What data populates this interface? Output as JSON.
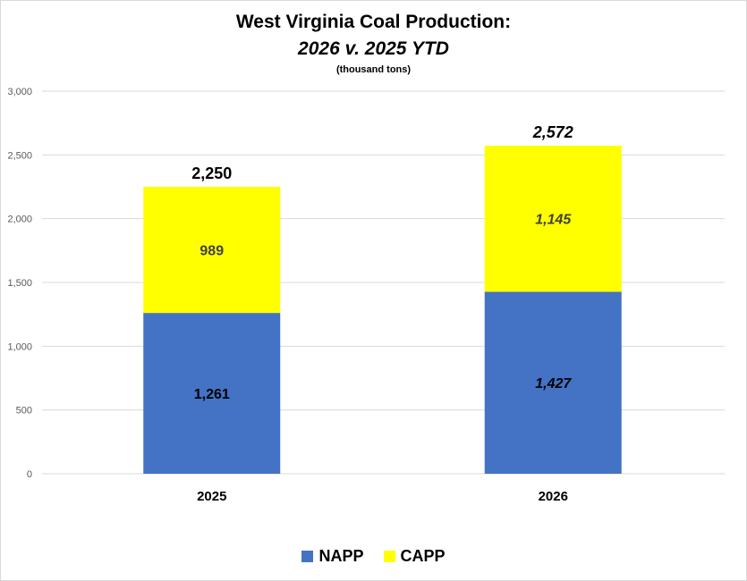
{
  "chart_data": {
    "type": "bar",
    "stacked": true,
    "title": "West Virginia Coal Production:",
    "subtitle": "2026 v. 2025 YTD",
    "units": "(thousand tons)",
    "xlabel": "",
    "ylabel": "",
    "categories": [
      "2025",
      "2026"
    ],
    "series": [
      {
        "name": "NAPP",
        "color": "#4472c4",
        "values": [
          1261,
          1427
        ],
        "labels": [
          "1,261",
          "1,427"
        ]
      },
      {
        "name": "CAPP",
        "color": "#ffff00",
        "values": [
          989,
          1145
        ],
        "labels": [
          "989",
          "1,145"
        ]
      }
    ],
    "totals": [
      2250,
      2572
    ],
    "total_labels": [
      "2,250",
      "2,572"
    ],
    "ylim": [
      0,
      3000
    ],
    "yticks": [
      0,
      500,
      1000,
      1500,
      2000,
      2500,
      3000
    ],
    "ytick_labels": [
      "0",
      "500",
      "1,000",
      "1,500",
      "2,000",
      "2,500",
      "3,000"
    ],
    "grid": true,
    "legend_position": "bottom"
  }
}
